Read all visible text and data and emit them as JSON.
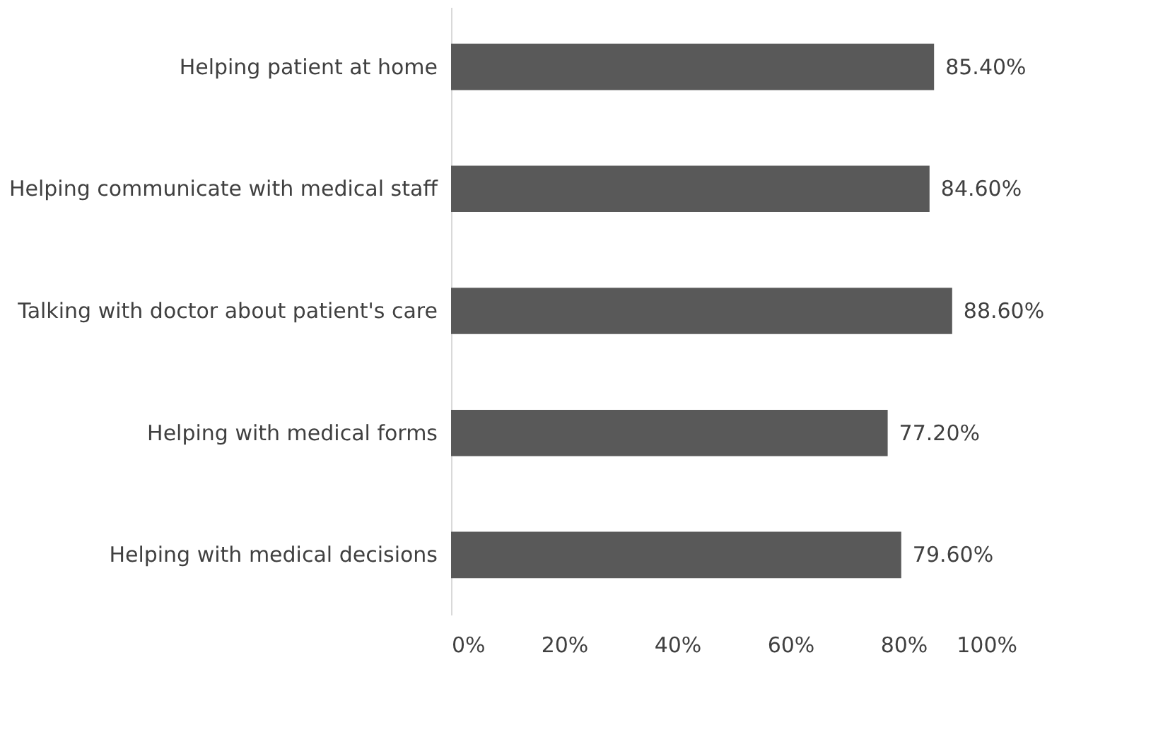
{
  "chart_data": {
    "type": "bar",
    "orientation": "horizontal",
    "categories": [
      "Helping patient at home",
      "Helping communicate with medical staff",
      "Talking with doctor about patient's care",
      "Helping with medical forms",
      "Helping with medical decisions"
    ],
    "values": [
      85.4,
      84.6,
      88.6,
      77.2,
      79.6
    ],
    "value_labels": [
      "85.40%",
      "84.60%",
      "88.60%",
      "77.20%",
      "79.60%"
    ],
    "color": "#595959",
    "xlim": [
      0,
      100
    ],
    "xticks": [
      {
        "value": 0,
        "label": "0%"
      },
      {
        "value": 20,
        "label": "20%"
      },
      {
        "value": 40,
        "label": "40%"
      },
      {
        "value": 60,
        "label": "60%"
      },
      {
        "value": 80,
        "label": "80%"
      },
      {
        "value": 100,
        "label": "100%"
      }
    ],
    "grid": false
  }
}
